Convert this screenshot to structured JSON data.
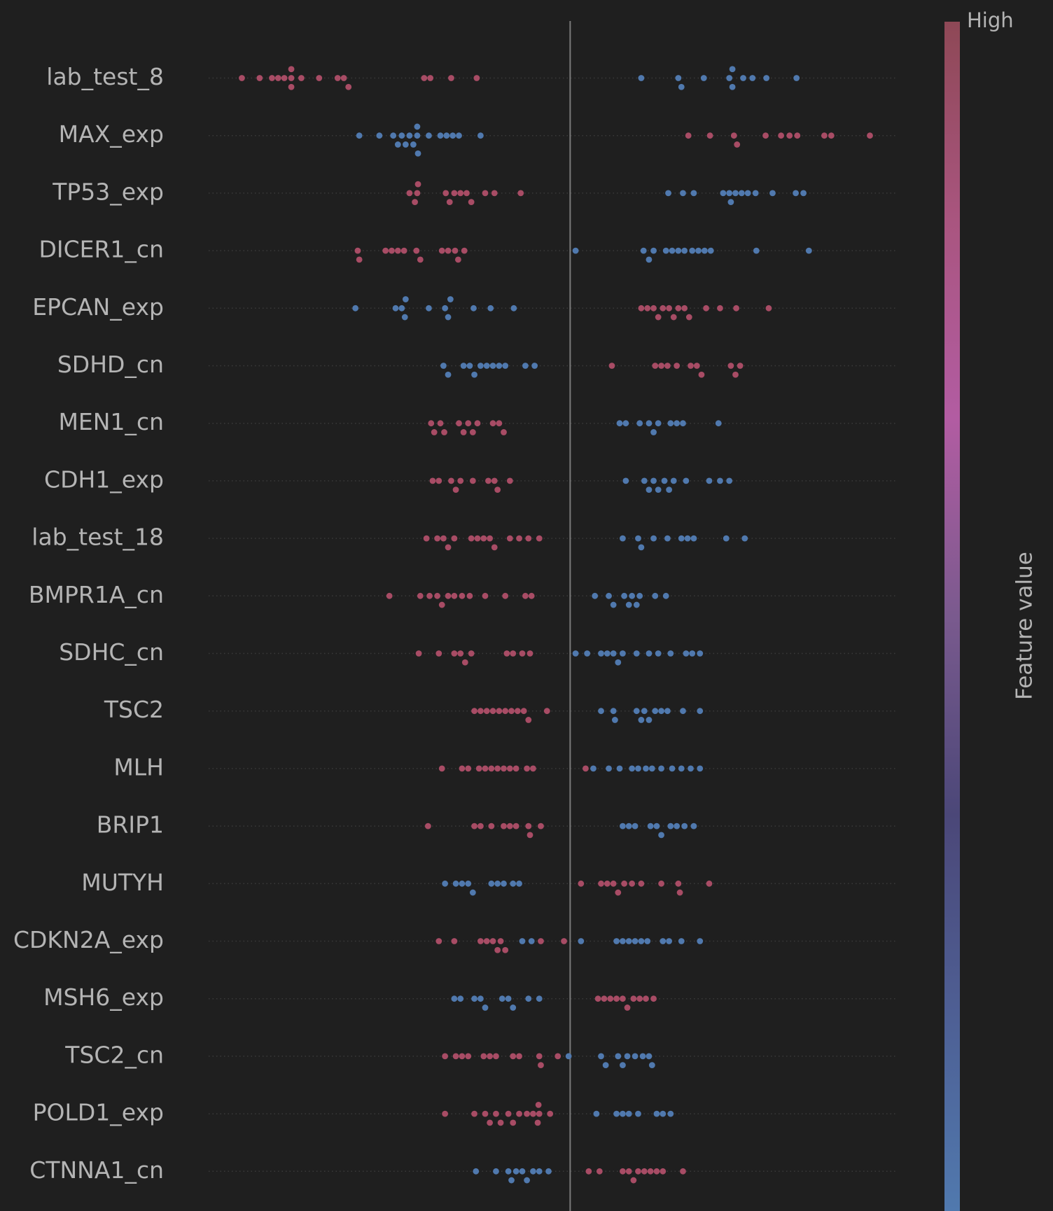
{
  "chart_data": {
    "type": "beeswarm",
    "xlim": [
      -4.68,
      4.22
    ],
    "high_color": "#a84c65",
    "low_color": "#5079ae",
    "colorbar_colors": [
      "#5079ae",
      "#4e5f94",
      "#4b4778",
      "#7a5a8e",
      "#b25ca2",
      "#a9557f",
      "#8e4856"
    ],
    "colorbar_high_label": "High",
    "colorbar_title": "Feature value",
    "categories": [
      "lab_test_8",
      "MAX_exp",
      "TP53_exp",
      "DICER1_cn",
      "EPCAN_exp",
      "SDHD_cn",
      "MEN1_cn",
      "CDH1_exp",
      "lab_test_18",
      "BMPR1A_cn",
      "SDHC_cn",
      "TSC2",
      "MLH",
      "BRIP1",
      "MUTYH",
      "CDKN2A_exp",
      "MSH6_exp",
      "TSC2_cn",
      "POLD1_exp",
      "CTNNA1_cn"
    ],
    "high_values": [
      [
        -4.25,
        -4.02,
        -3.86,
        -3.78,
        -3.7,
        -3.61,
        -3.61,
        -3.61,
        -3.48,
        -3.25,
        -3.01,
        -2.93,
        -2.87,
        -1.89,
        -1.81,
        -1.54,
        -1.21
      ],
      [
        1.53,
        1.81,
        2.12,
        2.16,
        2.53,
        2.73,
        2.84,
        2.94,
        3.29,
        3.38,
        3.88
      ],
      [
        -2.08,
        -2.01,
        -1.98,
        -1.97,
        -1.61,
        -1.56,
        -1.5,
        -1.42,
        -1.34,
        -1.28,
        -1.1,
        -0.98,
        -0.64
      ],
      [
        -2.75,
        -2.73,
        -2.39,
        -2.31,
        -2.23,
        -2.15,
        -1.99,
        -1.94,
        -1.66,
        -1.58,
        -1.49,
        -1.45,
        -1.37
      ],
      [
        0.92,
        1.0,
        1.08,
        1.14,
        1.2,
        1.28,
        1.34,
        1.4,
        1.48,
        1.54,
        1.76,
        1.94,
        2.15,
        2.57
      ],
      [
        0.54,
        1.1,
        1.18,
        1.26,
        1.38,
        1.56,
        1.64,
        1.7,
        2.08,
        2.14,
        2.2
      ],
      [
        -1.8,
        -1.76,
        -1.68,
        -1.63,
        -1.44,
        -1.38,
        -1.32,
        -1.26,
        -1.2,
        -1.0,
        -0.92,
        -0.86
      ],
      [
        -1.78,
        -1.7,
        -1.54,
        -1.48,
        -1.42,
        -1.26,
        -1.06,
        -0.98,
        -0.94,
        -0.78
      ],
      [
        -1.86,
        -1.72,
        -1.64,
        -1.58,
        -1.5,
        -1.28,
        -1.2,
        -1.12,
        -1.04,
        -0.98,
        -0.78,
        -0.66,
        -0.54,
        -0.4
      ],
      [
        -2.34,
        -1.94,
        -1.82,
        -1.72,
        -1.66,
        -1.58,
        -1.5,
        -1.4,
        -1.3,
        -1.1,
        -0.84,
        -0.58,
        -0.5
      ],
      [
        -1.96,
        -1.7,
        -1.5,
        -1.42,
        -1.36,
        -1.28,
        -0.82,
        -0.74,
        -0.62,
        -0.52
      ],
      [
        -1.24,
        -1.16,
        -1.08,
        -1.0,
        -0.92,
        -0.84,
        -0.76,
        -0.68,
        -0.6,
        -0.54,
        -0.3
      ],
      [
        -1.66,
        -1.4,
        -1.32,
        -1.18,
        -1.1,
        -1.02,
        -0.94,
        -0.86,
        -0.78,
        -0.7,
        -0.56,
        -0.48,
        0.2
      ],
      [
        -1.84,
        -1.24,
        -1.16,
        -1.02,
        -0.86,
        -0.78,
        -0.7,
        -0.54,
        -0.52,
        -0.38
      ],
      [
        0.14,
        0.4,
        0.48,
        0.56,
        0.62,
        0.7,
        0.8,
        0.92,
        1.18,
        1.4,
        1.42,
        1.8
      ],
      [
        -1.7,
        -1.5,
        -1.16,
        -1.08,
        -1.0,
        -0.94,
        -0.9,
        -0.84,
        -0.38,
        -0.08
      ],
      [
        0.36,
        0.44,
        0.52,
        0.6,
        0.68,
        0.74,
        0.82,
        0.9,
        0.98,
        1.08
      ],
      [
        -1.62,
        -1.48,
        -1.4,
        -1.32,
        -1.12,
        -1.04,
        -0.96,
        -0.74,
        -0.66,
        -0.4,
        -0.38,
        -0.16
      ],
      [
        -1.62,
        -1.24,
        -1.1,
        -1.04,
        -0.96,
        -0.9,
        -0.8,
        -0.74,
        -0.66,
        -0.56,
        -0.48,
        -0.42,
        -0.41,
        -0.4,
        -0.26
      ],
      [
        0.24,
        0.38,
        0.68,
        0.76,
        0.82,
        0.88,
        0.96,
        1.04,
        1.12,
        1.2,
        1.46
      ]
    ],
    "low_values": [
      [
        0.92,
        1.4,
        1.44,
        1.73,
        2.06,
        2.1,
        2.1,
        2.24,
        2.36,
        2.54,
        2.93
      ],
      [
        -2.73,
        -2.47,
        -2.29,
        -2.23,
        -2.18,
        -2.13,
        -2.08,
        -2.03,
        -1.98,
        -1.98,
        -1.97,
        -1.83,
        -1.68,
        -1.6,
        -1.52,
        -1.44,
        -1.16
      ],
      [
        1.27,
        1.46,
        1.6,
        1.98,
        2.06,
        2.08,
        2.14,
        2.22,
        2.3,
        2.4,
        2.62,
        2.92,
        3.02
      ],
      [
        0.07,
        0.95,
        1.02,
        1.08,
        1.24,
        1.32,
        1.4,
        1.48,
        1.58,
        1.66,
        1.74,
        1.82,
        2.41,
        3.09
      ],
      [
        -2.78,
        -2.26,
        -2.18,
        -2.14,
        -2.13,
        -1.83,
        -1.62,
        -1.58,
        -1.55,
        -1.25,
        -1.03,
        -0.73
      ],
      [
        -1.64,
        -1.58,
        -1.38,
        -1.3,
        -1.24,
        -1.16,
        -1.08,
        -1.0,
        -0.92,
        -0.84,
        -0.58,
        -0.46
      ],
      [
        0.64,
        0.72,
        0.9,
        1.02,
        1.08,
        1.14,
        1.3,
        1.38,
        1.46,
        1.92
      ],
      [
        0.72,
        0.96,
        1.02,
        1.08,
        1.14,
        1.22,
        1.28,
        1.34,
        1.5,
        1.8,
        1.94,
        2.06
      ],
      [
        0.68,
        0.88,
        0.92,
        1.08,
        1.26,
        1.44,
        1.52,
        1.6,
        2.02,
        2.26
      ],
      [
        0.32,
        0.5,
        0.56,
        0.7,
        0.76,
        0.8,
        0.86,
        0.9,
        1.1,
        1.24
      ],
      [
        0.07,
        0.22,
        0.4,
        0.48,
        0.56,
        0.62,
        0.68,
        0.86,
        1.02,
        1.14,
        1.3,
        1.5,
        1.58,
        1.68
      ],
      [
        0.4,
        0.56,
        0.58,
        0.86,
        0.92,
        0.96,
        1.02,
        1.1,
        1.18,
        1.26,
        1.46,
        1.68
      ],
      [
        0.3,
        0.5,
        0.64,
        0.8,
        0.88,
        0.98,
        1.06,
        1.18,
        1.32,
        1.44,
        1.56,
        1.68
      ],
      [
        0.68,
        0.76,
        0.84,
        1.04,
        1.12,
        1.18,
        1.3,
        1.38,
        1.48,
        1.6
      ],
      [
        -1.62,
        -1.48,
        -1.4,
        -1.32,
        -1.26,
        -1.02,
        -0.94,
        -0.86,
        -0.74,
        -0.66
      ],
      [
        -0.62,
        -0.5,
        0.14,
        0.6,
        0.68,
        0.76,
        0.84,
        0.92,
        1.0,
        1.2,
        1.28,
        1.44,
        1.68
      ],
      [
        -1.5,
        -1.42,
        -1.24,
        -1.16,
        -1.1,
        -0.88,
        -0.8,
        -0.74,
        -0.54,
        -0.4
      ],
      [
        -0.02,
        0.4,
        0.46,
        0.62,
        0.68,
        0.74,
        0.84,
        0.94,
        1.02,
        1.06
      ],
      [
        0.34,
        0.6,
        0.68,
        0.76,
        0.88,
        1.12,
        1.2,
        1.3
      ],
      [
        -1.22,
        -0.96,
        -0.8,
        -0.76,
        -0.7,
        -0.62,
        -0.56,
        -0.48,
        -0.4,
        -0.28
      ]
    ]
  }
}
